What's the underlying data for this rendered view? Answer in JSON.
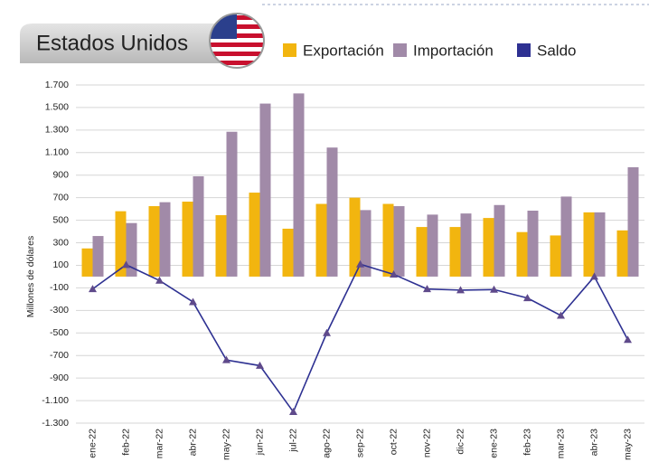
{
  "chart_data": {
    "type": "bar",
    "title": "Estados Unidos",
    "y_label": "Millones de dólares",
    "categories": [
      "ene-22",
      "feb-22",
      "mar-22",
      "abr-22",
      "may-22",
      "jun-22",
      "jul-22",
      "ago-22",
      "sep-22",
      "oct-22",
      "nov-22",
      "dic-22",
      "ene-23",
      "feb-23",
      "mar-23",
      "abr-23",
      "may-23"
    ],
    "series": [
      {
        "name": "Exportación",
        "type": "bar",
        "color": "#f2b50f",
        "values": [
          250,
          580,
          625,
          665,
          545,
          745,
          425,
          645,
          700,
          645,
          440,
          440,
          520,
          395,
          365,
          570,
          410
        ]
      },
      {
        "name": "Importación",
        "type": "bar",
        "color": "#a18aa8",
        "values": [
          360,
          475,
          660,
          890,
          1285,
          1535,
          1625,
          1145,
          590,
          625,
          550,
          560,
          635,
          585,
          710,
          570,
          970
        ]
      },
      {
        "name": "Saldo",
        "type": "line",
        "color": "#2e3192",
        "marker_color": "#5f4a8b",
        "values": [
          -110,
          105,
          -35,
          -225,
          -740,
          -790,
          -1200,
          -500,
          110,
          20,
          -110,
          -120,
          -115,
          -190,
          -345,
          0,
          -560
        ]
      }
    ],
    "ylim": [
      -1300,
      1700
    ],
    "yticks": [
      {
        "value": -1300,
        "label": "-1.300"
      },
      {
        "value": -1100,
        "label": "-1.100"
      },
      -900,
      -700,
      -500,
      -300,
      -100,
      100,
      300,
      500,
      700,
      900,
      {
        "value": 1100,
        "label": "1.100"
      },
      {
        "value": 1300,
        "label": "1.300"
      },
      {
        "value": 1500,
        "label": "1.500"
      },
      {
        "value": 1700,
        "label": "1.700"
      }
    ],
    "grid": true
  }
}
